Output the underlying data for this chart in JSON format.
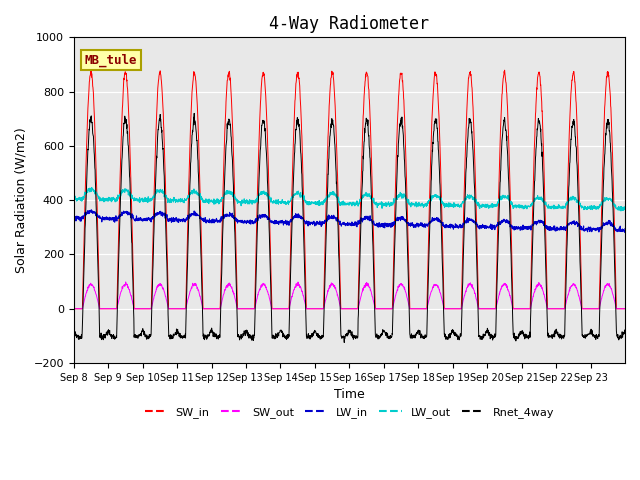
{
  "title": "4-Way Radiometer",
  "xlabel": "Time",
  "ylabel": "Solar Radiation (W/m2)",
  "ylim": [
    -200,
    1000
  ],
  "annotation": "MB_tule",
  "x_tick_labels": [
    "Sep 8",
    "Sep 9",
    "Sep 10",
    "Sep 11",
    "Sep 12",
    "Sep 13",
    "Sep 14",
    "Sep 15",
    "Sep 16",
    "Sep 17",
    "Sep 18",
    "Sep 19",
    "Sep 20",
    "Sep 21",
    "Sep 22",
    "Sep 23"
  ],
  "colors": {
    "SW_in": "#ff0000",
    "SW_out": "#ff00ff",
    "LW_in": "#0000cc",
    "LW_out": "#00cccc",
    "Rnet_4way": "#000000"
  },
  "background_color": "#e8e8e8",
  "title_fontsize": 12,
  "n_days": 16
}
